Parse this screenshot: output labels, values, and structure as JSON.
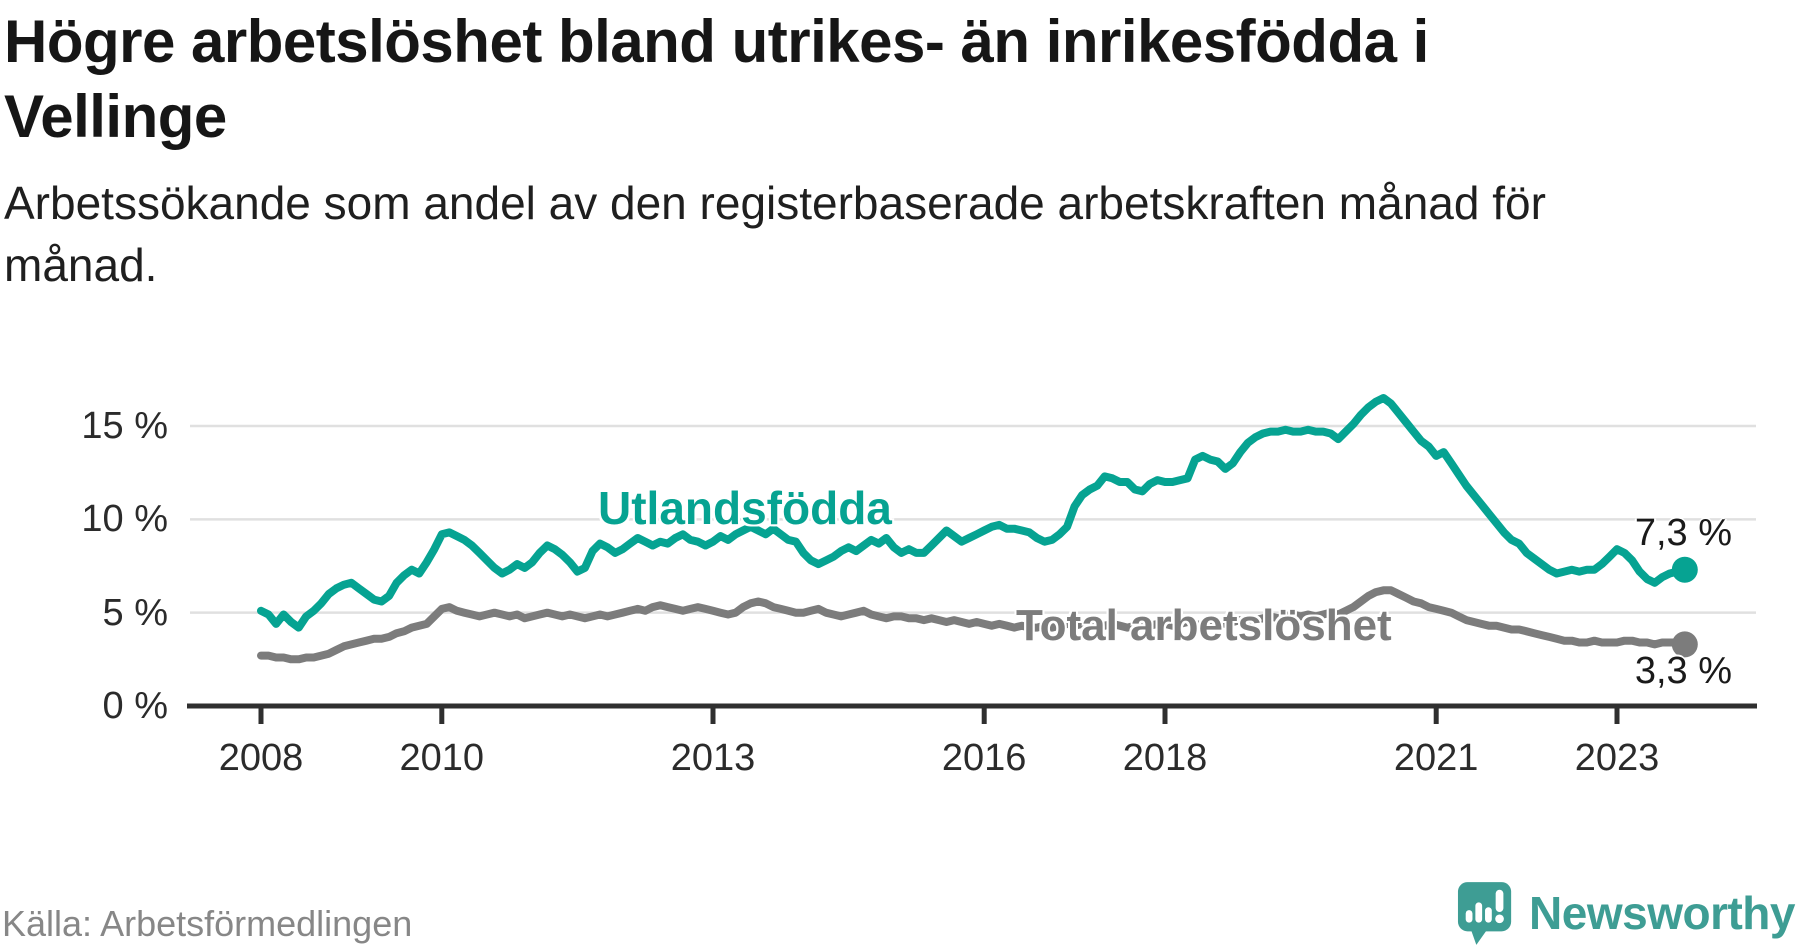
{
  "header": {
    "title_lines": [
      "Högre arbetslöshet bland utrikes- än inrikesfödda i",
      "Vellinge"
    ],
    "subtitle_lines": [
      "Arbetssökande som andel av den registerbaserade arbetskraften månad för",
      "månad."
    ]
  },
  "footer": {
    "source": "Källa: Arbetsförmedlingen"
  },
  "branding": {
    "logo_text": "Newsworthy",
    "logo_color": "#3e9d94"
  },
  "colors": {
    "grid": "#e0e0e0",
    "axis": "#2f2f2f",
    "tick_label": "#2b2b2b",
    "value_label": "#1a1a1a",
    "background": "#ffffff"
  },
  "chart_data": {
    "type": "line",
    "title": "Högre arbetslöshet bland utrikes- än inrikesfödda i Vellinge",
    "subtitle": "Arbetssökande som andel av den registerbaserade arbetskraften månad för månad.",
    "x_start": "2008-01",
    "x_end": "2023-10",
    "frequency": "monthly",
    "x_ticks": [
      2008,
      2010,
      2013,
      2016,
      2018,
      2021,
      2023
    ],
    "y_ticks": [
      {
        "label": "15 %",
        "value": 15
      },
      {
        "label": "10 %",
        "value": 10
      },
      {
        "label": "5 %",
        "value": 5
      },
      {
        "label": "0 %",
        "value": 0
      }
    ],
    "ylim": [
      0,
      16.8
    ],
    "grid": "horizontal",
    "legend_position": "inline-labels",
    "series": [
      {
        "name": "Utlandsfödda",
        "color": "#06a392",
        "end_label": "7,3 %",
        "end_value": 7.3,
        "values": [
          5.1,
          4.9,
          4.4,
          4.9,
          4.5,
          4.2,
          4.8,
          5.1,
          5.5,
          6.0,
          6.3,
          6.5,
          6.6,
          6.3,
          6.0,
          5.7,
          5.6,
          5.9,
          6.6,
          7.0,
          7.3,
          7.1,
          7.7,
          8.4,
          9.2,
          9.3,
          9.1,
          8.9,
          8.6,
          8.2,
          7.8,
          7.4,
          7.1,
          7.3,
          7.6,
          7.4,
          7.7,
          8.2,
          8.6,
          8.4,
          8.1,
          7.7,
          7.2,
          7.4,
          8.3,
          8.7,
          8.5,
          8.2,
          8.4,
          8.7,
          9.0,
          8.8,
          8.6,
          8.8,
          8.7,
          9.0,
          9.2,
          8.9,
          8.8,
          8.6,
          8.8,
          9.1,
          8.9,
          9.2,
          9.4,
          9.6,
          9.4,
          9.2,
          9.5,
          9.2,
          8.9,
          8.8,
          8.2,
          7.8,
          7.6,
          7.8,
          8.0,
          8.3,
          8.5,
          8.3,
          8.6,
          8.9,
          8.7,
          9.0,
          8.5,
          8.2,
          8.4,
          8.2,
          8.2,
          8.6,
          9.0,
          9.4,
          9.1,
          8.8,
          9.0,
          9.2,
          9.4,
          9.6,
          9.7,
          9.5,
          9.5,
          9.4,
          9.3,
          9.0,
          8.8,
          8.9,
          9.2,
          9.6,
          10.7,
          11.3,
          11.6,
          11.8,
          12.3,
          12.2,
          12.0,
          12.0,
          11.6,
          11.5,
          11.9,
          12.1,
          12.0,
          12.0,
          12.1,
          12.2,
          13.2,
          13.4,
          13.2,
          13.1,
          12.7,
          13.0,
          13.6,
          14.1,
          14.4,
          14.6,
          14.7,
          14.7,
          14.8,
          14.7,
          14.7,
          14.8,
          14.7,
          14.7,
          14.6,
          14.3,
          14.7,
          15.1,
          15.6,
          16.0,
          16.3,
          16.5,
          16.2,
          15.7,
          15.2,
          14.7,
          14.2,
          13.9,
          13.4,
          13.6,
          13.0,
          12.4,
          11.8,
          11.3,
          10.8,
          10.3,
          9.8,
          9.3,
          8.9,
          8.7,
          8.2,
          7.9,
          7.6,
          7.3,
          7.1,
          7.2,
          7.3,
          7.2,
          7.3,
          7.3,
          7.6,
          8.0,
          8.4,
          8.2,
          7.8,
          7.2,
          6.8,
          6.6,
          6.9,
          7.1,
          7.2,
          7.3
        ]
      },
      {
        "name": "Total arbetslöshet",
        "color": "#7c7c7c",
        "end_label": "3,3 %",
        "end_value": 3.3,
        "values": [
          2.7,
          2.7,
          2.6,
          2.6,
          2.5,
          2.5,
          2.6,
          2.6,
          2.7,
          2.8,
          3.0,
          3.2,
          3.3,
          3.4,
          3.5,
          3.6,
          3.6,
          3.7,
          3.9,
          4.0,
          4.2,
          4.3,
          4.4,
          4.8,
          5.2,
          5.3,
          5.1,
          5.0,
          4.9,
          4.8,
          4.9,
          5.0,
          4.9,
          4.8,
          4.9,
          4.7,
          4.8,
          4.9,
          5.0,
          4.9,
          4.8,
          4.9,
          4.8,
          4.7,
          4.8,
          4.9,
          4.8,
          4.9,
          5.0,
          5.1,
          5.2,
          5.1,
          5.3,
          5.4,
          5.3,
          5.2,
          5.1,
          5.2,
          5.3,
          5.2,
          5.1,
          5.0,
          4.9,
          5.0,
          5.3,
          5.5,
          5.6,
          5.5,
          5.3,
          5.2,
          5.1,
          5.0,
          5.0,
          5.1,
          5.2,
          5.0,
          4.9,
          4.8,
          4.9,
          5.0,
          5.1,
          4.9,
          4.8,
          4.7,
          4.8,
          4.8,
          4.7,
          4.7,
          4.6,
          4.7,
          4.6,
          4.5,
          4.6,
          4.5,
          4.4,
          4.5,
          4.4,
          4.3,
          4.4,
          4.3,
          4.2,
          4.3,
          4.2,
          4.2,
          4.3,
          4.2,
          4.3,
          4.4,
          4.3,
          4.4,
          4.5,
          4.4,
          4.3,
          4.4,
          4.3,
          4.2,
          4.3,
          4.4,
          4.3,
          4.4,
          4.4,
          4.3,
          4.4,
          4.5,
          4.4,
          4.3,
          4.4,
          4.5,
          4.4,
          4.5,
          4.6,
          4.5,
          4.6,
          4.7,
          4.8,
          4.7,
          4.8,
          4.9,
          4.8,
          4.9,
          4.8,
          4.9,
          5.0,
          4.9,
          5.1,
          5.3,
          5.6,
          5.9,
          6.1,
          6.2,
          6.2,
          6.0,
          5.8,
          5.6,
          5.5,
          5.3,
          5.2,
          5.1,
          5.0,
          4.8,
          4.6,
          4.5,
          4.4,
          4.3,
          4.3,
          4.2,
          4.1,
          4.1,
          4.0,
          3.9,
          3.8,
          3.7,
          3.6,
          3.5,
          3.5,
          3.4,
          3.4,
          3.5,
          3.4,
          3.4,
          3.4,
          3.5,
          3.5,
          3.4,
          3.4,
          3.3,
          3.4,
          3.4,
          3.4,
          3.3
        ]
      }
    ]
  }
}
